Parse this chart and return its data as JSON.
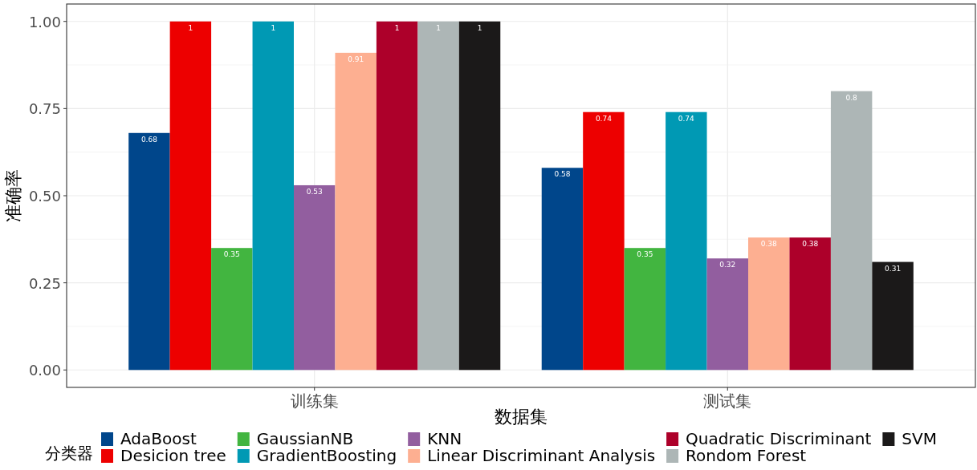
{
  "chart_data": {
    "type": "bar",
    "xlabel": "数据集",
    "ylabel": "准确率",
    "legend_title": "分类器",
    "categories": [
      "训练集",
      "测试集"
    ],
    "series": [
      {
        "name": "AdaBoost",
        "color": "#00468b",
        "values": [
          0.68,
          0.58
        ]
      },
      {
        "name": "Desicion tree",
        "color": "#ed0000",
        "values": [
          1,
          0.74
        ]
      },
      {
        "name": "GaussianNB",
        "color": "#42b540",
        "values": [
          0.35,
          0.35
        ]
      },
      {
        "name": "GradientBoosting",
        "color": "#0099b4",
        "values": [
          1,
          0.74
        ]
      },
      {
        "name": "KNN",
        "color": "#925e9f",
        "values": [
          0.53,
          0.32
        ]
      },
      {
        "name": "Linear Discriminant Analysis",
        "color": "#fdaf91",
        "values": [
          0.91,
          0.38
        ]
      },
      {
        "name": "Quadratic Discriminant",
        "color": "#ad002a",
        "values": [
          1,
          0.38
        ]
      },
      {
        "name": "Rondom Forest",
        "color": "#adb6b6",
        "values": [
          1,
          0.8
        ]
      },
      {
        "name": "SVM",
        "color": "#1b1919",
        "values": [
          1,
          0.31
        ]
      }
    ],
    "ylim": [
      -0.05,
      1.05
    ],
    "yticks": [
      {
        "value": 0,
        "label": "0.00"
      },
      {
        "value": 0.25,
        "label": "0.25"
      },
      {
        "value": 0.5,
        "label": "0.50"
      },
      {
        "value": 0.75,
        "label": "0.75"
      },
      {
        "value": 1,
        "label": "1.00"
      }
    ],
    "grid": true,
    "legend": "bottom",
    "data_labels": true
  }
}
